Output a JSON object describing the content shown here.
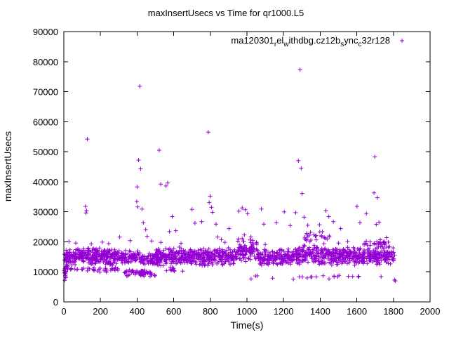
{
  "chart_data": {
    "type": "scatter",
    "title": "maxInsertUsecs vs Time for qr1000.L5",
    "xlabel": "Time(s)",
    "ylabel": "maxInsertUsecs",
    "xlim": [
      0,
      2000
    ],
    "ylim": [
      0,
      90000
    ],
    "xticks": [
      0,
      200,
      400,
      600,
      800,
      1000,
      1200,
      1400,
      1600,
      1800,
      2000
    ],
    "yticks": [
      0,
      10000,
      20000,
      30000,
      40000,
      50000,
      60000,
      70000,
      80000,
      90000
    ],
    "grid": false,
    "legend_position": "top-right-inside",
    "axis_color": "#000000",
    "background": "#ffffff",
    "series": [
      {
        "name": "ma120301relwithdbg.cz12bsyncc32r128",
        "name_parts": [
          {
            "text": "ma120301",
            "sub": false
          },
          {
            "text": "r",
            "sub": true
          },
          {
            "text": "el",
            "sub": false
          },
          {
            "text": "w",
            "sub": true
          },
          {
            "text": "ithdbg.cz12b",
            "sub": false
          },
          {
            "text": "s",
            "sub": true
          },
          {
            "text": "ync",
            "sub": false
          },
          {
            "text": "c",
            "sub": true
          },
          {
            "text": "32r128",
            "sub": false
          }
        ],
        "color": "#9400d3",
        "marker": "plus",
        "seed": 7,
        "band_segments": [
          [
            1,
            12,
            10,
            7000,
            13500
          ],
          [
            3,
            22,
            25,
            10500,
            16500
          ],
          [
            12,
            300,
            285,
            12000,
            18100
          ],
          [
            15,
            300,
            40,
            9800,
            12000
          ],
          [
            300,
            420,
            95,
            12500,
            17500
          ],
          [
            330,
            500,
            55,
            8200,
            11200
          ],
          [
            420,
            520,
            70,
            12000,
            16500
          ],
          [
            500,
            950,
            430,
            12000,
            18300
          ],
          [
            560,
            650,
            12,
            9800,
            11800
          ],
          [
            950,
            1060,
            95,
            13000,
            21500
          ],
          [
            1060,
            1260,
            170,
            11800,
            17800
          ],
          [
            1260,
            1460,
            170,
            12000,
            19500
          ],
          [
            1280,
            1460,
            25,
            19000,
            23800
          ],
          [
            1460,
            1810,
            320,
            12000,
            18500
          ],
          [
            1640,
            1780,
            30,
            17500,
            21000
          ],
          [
            1020,
            1800,
            22,
            7300,
            9200
          ]
        ],
        "outliers": [
          [
            5,
            7200
          ],
          [
            8,
            8800
          ],
          [
            28,
            20100
          ],
          [
            65,
            19600
          ],
          [
            118,
            31800
          ],
          [
            121,
            29600
          ],
          [
            124,
            30400
          ],
          [
            128,
            54200
          ],
          [
            150,
            19300
          ],
          [
            210,
            19900
          ],
          [
            245,
            19400
          ],
          [
            305,
            21600
          ],
          [
            362,
            20400
          ],
          [
            398,
            33400
          ],
          [
            400,
            38300
          ],
          [
            403,
            31600
          ],
          [
            408,
            47200
          ],
          [
            415,
            71800
          ],
          [
            419,
            44300
          ],
          [
            427,
            30900
          ],
          [
            434,
            26400
          ],
          [
            447,
            24100
          ],
          [
            455,
            21800
          ],
          [
            480,
            20300
          ],
          [
            521,
            50500
          ],
          [
            529,
            39200
          ],
          [
            530,
            19800
          ],
          [
            558,
            38600
          ],
          [
            567,
            39600
          ],
          [
            577,
            23400
          ],
          [
            592,
            28400
          ],
          [
            612,
            23700
          ],
          [
            640,
            19500
          ],
          [
            700,
            30800
          ],
          [
            716,
            26200
          ],
          [
            753,
            26700
          ],
          [
            789,
            56500
          ],
          [
            794,
            33100
          ],
          [
            799,
            35200
          ],
          [
            806,
            31500
          ],
          [
            812,
            29800
          ],
          [
            831,
            25900
          ],
          [
            840,
            21600
          ],
          [
            860,
            20700
          ],
          [
            880,
            19800
          ],
          [
            902,
            24400
          ],
          [
            956,
            30200
          ],
          [
            974,
            31300
          ],
          [
            986,
            22300
          ],
          [
            991,
            30700
          ],
          [
            1003,
            29400
          ],
          [
            1022,
            21700
          ],
          [
            1079,
            30900
          ],
          [
            1092,
            25900
          ],
          [
            1100,
            19100
          ],
          [
            1161,
            26400
          ],
          [
            1204,
            30000
          ],
          [
            1236,
            25400
          ],
          [
            1266,
            29700
          ],
          [
            1281,
            47000
          ],
          [
            1290,
            77300
          ],
          [
            1296,
            44500
          ],
          [
            1301,
            36100
          ],
          [
            1312,
            28200
          ],
          [
            1332,
            25500
          ],
          [
            1347,
            23200
          ],
          [
            1366,
            22400
          ],
          [
            1396,
            25700
          ],
          [
            1431,
            30400
          ],
          [
            1447,
            28400
          ],
          [
            1472,
            26700
          ],
          [
            1500,
            19600
          ],
          [
            1512,
            24400
          ],
          [
            1550,
            20100
          ],
          [
            1601,
            31800
          ],
          [
            1617,
            26400
          ],
          [
            1652,
            29400
          ],
          [
            1694,
            36300
          ],
          [
            1698,
            48300
          ],
          [
            1706,
            25800
          ],
          [
            1712,
            34700
          ],
          [
            1721,
            26500
          ],
          [
            1745,
            19900
          ],
          [
            1762,
            21400
          ],
          [
            1806,
            7300
          ],
          [
            1810,
            7000
          ]
        ]
      }
    ]
  }
}
